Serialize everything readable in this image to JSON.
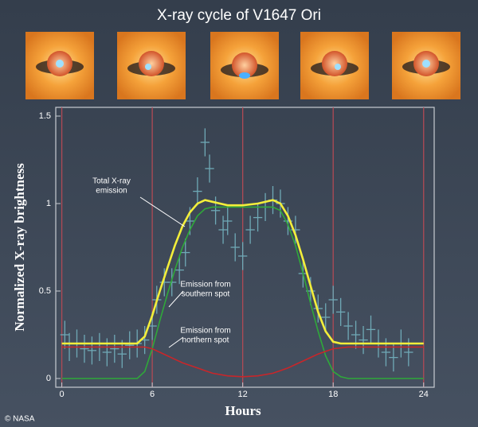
{
  "chart_data": {
    "type": "scatter",
    "title": "X-ray cycle of V1647 Ori",
    "x_label": "Hours",
    "y_label": "Normalized X-ray brightness",
    "credit": "© NASA",
    "xlim": [
      -0.4,
      24.7
    ],
    "ylim": [
      -0.05,
      1.55
    ],
    "xticks": [
      0,
      6,
      12,
      18,
      24
    ],
    "yticks": [
      0,
      0.5,
      1,
      1.5
    ],
    "phase_lines": [
      0,
      6,
      12,
      18,
      24
    ],
    "phase_line_color": "#b04a55",
    "points": {
      "color": "#6fa9b6",
      "x_error": 0.3,
      "y_error": 0.08,
      "x": [
        0.2,
        0.5,
        1,
        1.5,
        2,
        2.5,
        3,
        3.5,
        4,
        4.5,
        5,
        5.5,
        6,
        6.3,
        6.8,
        7.3,
        7.8,
        8.2,
        8.5,
        9,
        9.5,
        9.8,
        10.2,
        10.7,
        11,
        11.5,
        12,
        12.5,
        13,
        13.5,
        14,
        14.5,
        15,
        15.5,
        16,
        16.5,
        17,
        17.5,
        18,
        18.5,
        19,
        19.5,
        20,
        20.5,
        21,
        21.5,
        22,
        22.5,
        23
      ],
      "y": [
        0.25,
        0.18,
        0.2,
        0.17,
        0.16,
        0.18,
        0.15,
        0.17,
        0.14,
        0.19,
        0.2,
        0.22,
        0.3,
        0.45,
        0.55,
        0.55,
        0.62,
        0.72,
        0.9,
        1.07,
        1.35,
        1.2,
        0.96,
        0.85,
        0.9,
        0.75,
        0.7,
        0.85,
        0.92,
        0.98,
        1.02,
        1.0,
        0.9,
        0.85,
        0.6,
        0.5,
        0.4,
        0.35,
        0.45,
        0.38,
        0.3,
        0.25,
        0.22,
        0.28,
        0.2,
        0.15,
        0.12,
        0.2,
        0.15
      ]
    },
    "x": [
      0,
      4.5,
      5,
      5.5,
      6,
      6.5,
      7,
      7.5,
      8,
      8.5,
      9,
      9.5,
      10,
      11,
      12,
      13,
      14,
      14.5,
      15,
      15.5,
      16,
      16.5,
      17,
      17.5,
      18,
      18.5,
      19,
      24
    ],
    "series": [
      {
        "annotation": [
          "Total X-ray",
          "emission"
        ],
        "color": "#f3ee3a",
        "values": [
          0.2,
          0.2,
          0.2,
          0.24,
          0.36,
          0.5,
          0.63,
          0.76,
          0.87,
          0.95,
          1.0,
          1.02,
          1.01,
          0.99,
          0.99,
          1.0,
          1.02,
          1.0,
          0.93,
          0.82,
          0.68,
          0.53,
          0.38,
          0.27,
          0.21,
          0.2,
          0.2,
          0.2
        ]
      },
      {
        "annotation": [
          "Emission from",
          "southern spot"
        ],
        "color": "#2fa83a",
        "values": [
          0,
          0,
          0,
          0.04,
          0.17,
          0.33,
          0.48,
          0.62,
          0.75,
          0.85,
          0.93,
          0.97,
          0.98,
          0.98,
          0.98,
          0.98,
          0.98,
          0.96,
          0.88,
          0.76,
          0.6,
          0.43,
          0.27,
          0.13,
          0.04,
          0.01,
          0,
          0
        ]
      },
      {
        "annotation": [
          "Emission from",
          "northern spot"
        ],
        "color": "#c8262a",
        "values": [
          0.18,
          0.18,
          0.18,
          0.18,
          0.17,
          0.15,
          0.13,
          0.11,
          0.09,
          0.075,
          0.06,
          0.045,
          0.03,
          0.015,
          0.01,
          0.015,
          0.03,
          0.045,
          0.06,
          0.08,
          0.1,
          0.12,
          0.14,
          0.155,
          0.17,
          0.175,
          0.18,
          0.18
        ]
      }
    ]
  }
}
